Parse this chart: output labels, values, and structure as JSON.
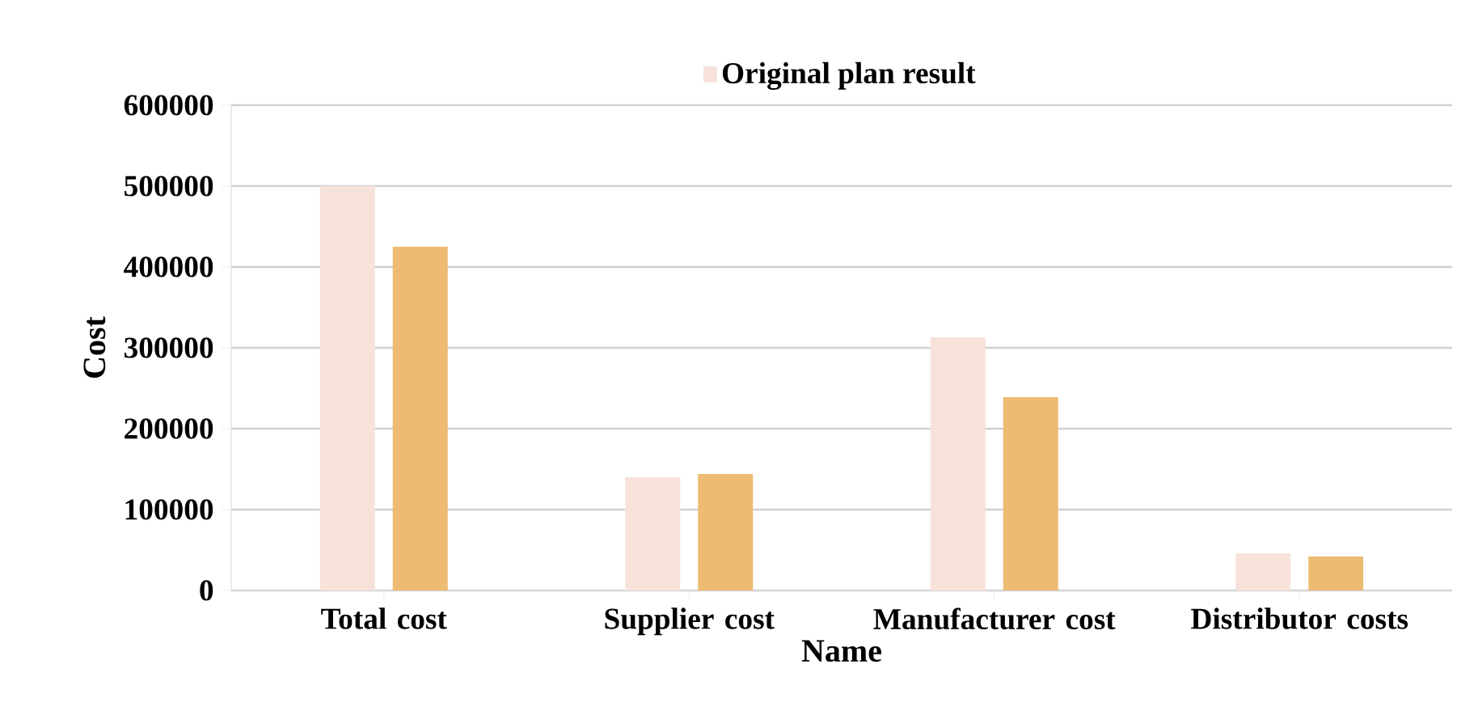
{
  "chart_data": {
    "type": "bar",
    "xlabel": "Name",
    "ylabel": "Cost",
    "categories": [
      "Total cost",
      "Supplier cost",
      "Manufacturer cost",
      "Distributor costs"
    ],
    "series": [
      {
        "name": "Original plan result",
        "color": "#f7e2da",
        "values": [
          500000,
          140000,
          313000,
          46000
        ]
      },
      {
        "color": "#edbb71",
        "values": [
          425000,
          144000,
          239000,
          42000
        ]
      }
    ],
    "ylim": [
      0,
      600000
    ],
    "yticks": [
      0,
      100000,
      200000,
      300000,
      400000,
      500000,
      600000
    ],
    "grid": "y",
    "legend": "top"
  }
}
